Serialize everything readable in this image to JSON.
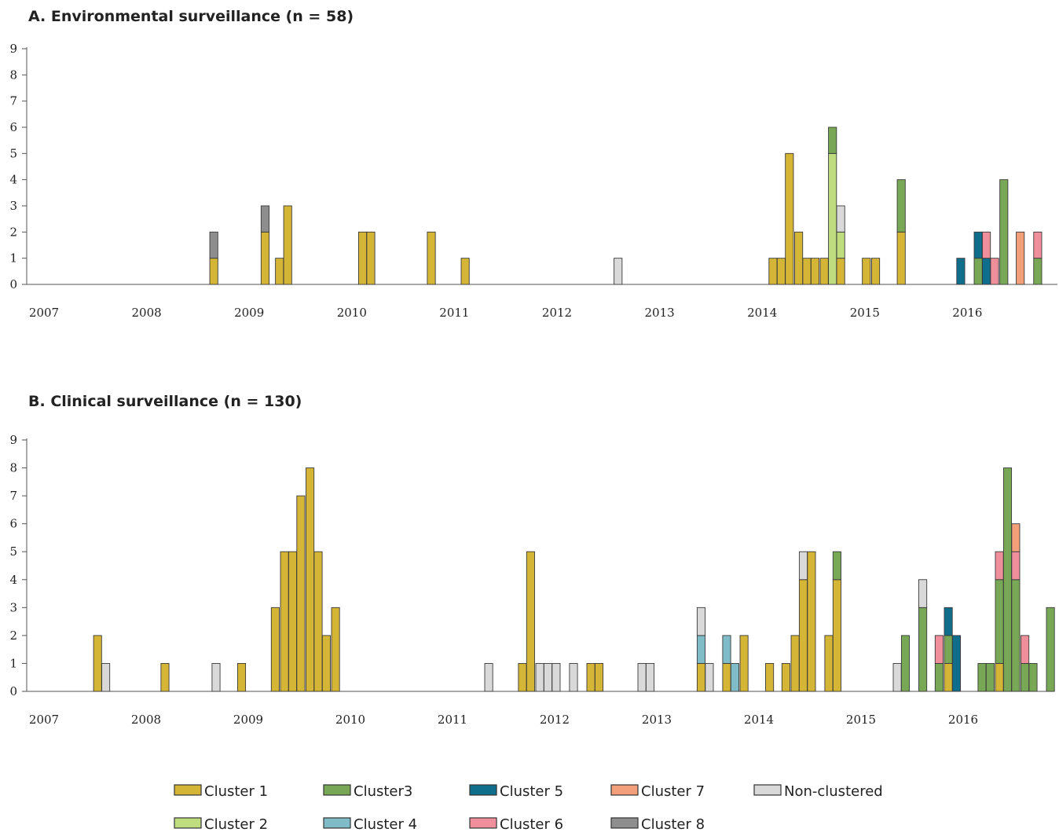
{
  "colors": {
    "Cluster 1": "#d4b536",
    "Cluster 2": "#bfdc7f",
    "Cluster 3": "#78a855",
    "Cluster 4": "#7fbcc8",
    "Cluster 5": "#0f6e8c",
    "Cluster 6": "#ef8f9c",
    "Cluster 7": "#f3a07a",
    "Cluster 8": "#8e8e8e",
    "Non-clustered": "#d9d9d9"
  },
  "legend": [
    {
      "key": "Cluster 1",
      "label": "Cluster 1"
    },
    {
      "key": "Cluster 3",
      "label": "Cluster3"
    },
    {
      "key": "Cluster 5",
      "label": "Cluster 5"
    },
    {
      "key": "Cluster 7",
      "label": "Cluster 7"
    },
    {
      "key": "Non-clustered",
      "label": "Non-clustered"
    },
    {
      "key": "Cluster 2",
      "label": "Cluster 2"
    },
    {
      "key": "Cluster 4",
      "label": "Cluster 4"
    },
    {
      "key": "Cluster 6",
      "label": "Cluster 6"
    },
    {
      "key": "Cluster 8",
      "label": "Cluster 8"
    }
  ],
  "chart_data": [
    {
      "type": "bar",
      "stacked": true,
      "title": "A. Environmental surveillance (n = 58)",
      "xlabel": "",
      "ylabel": "",
      "ylim": [
        0,
        9
      ],
      "yticks": [
        0,
        1,
        2,
        3,
        4,
        5,
        6,
        7,
        8,
        9
      ],
      "xticks": [
        "2007",
        "2008",
        "2009",
        "2010",
        "2011",
        "2012",
        "2013",
        "2014",
        "2015",
        "2016"
      ],
      "xlim": [
        2007.0,
        2017.0
      ],
      "bar_width_years": 0.083,
      "bars": [
        {
          "x": 2008.78,
          "stack": [
            {
              "c": "Cluster 1",
              "v": 1
            },
            {
              "c": "Cluster 8",
              "v": 1
            }
          ]
        },
        {
          "x": 2009.28,
          "stack": [
            {
              "c": "Cluster 1",
              "v": 2
            },
            {
              "c": "Cluster 8",
              "v": 1
            }
          ]
        },
        {
          "x": 2009.42,
          "stack": [
            {
              "c": "Cluster 1",
              "v": 1
            }
          ]
        },
        {
          "x": 2009.5,
          "stack": [
            {
              "c": "Cluster 1",
              "v": 3
            }
          ]
        },
        {
          "x": 2010.23,
          "stack": [
            {
              "c": "Cluster 1",
              "v": 2
            }
          ]
        },
        {
          "x": 2010.31,
          "stack": [
            {
              "c": "Cluster 1",
              "v": 2
            }
          ]
        },
        {
          "x": 2010.9,
          "stack": [
            {
              "c": "Cluster 1",
              "v": 2
            }
          ]
        },
        {
          "x": 2011.23,
          "stack": [
            {
              "c": "Cluster 1",
              "v": 1
            }
          ]
        },
        {
          "x": 2012.72,
          "stack": [
            {
              "c": "Non-clustered",
              "v": 1
            }
          ]
        },
        {
          "x": 2014.23,
          "stack": [
            {
              "c": "Cluster 1",
              "v": 1
            }
          ]
        },
        {
          "x": 2014.31,
          "stack": [
            {
              "c": "Cluster 1",
              "v": 1
            }
          ]
        },
        {
          "x": 2014.39,
          "stack": [
            {
              "c": "Cluster 1",
              "v": 5
            }
          ]
        },
        {
          "x": 2014.48,
          "stack": [
            {
              "c": "Cluster 1",
              "v": 2
            }
          ]
        },
        {
          "x": 2014.56,
          "stack": [
            {
              "c": "Cluster 1",
              "v": 1
            }
          ]
        },
        {
          "x": 2014.64,
          "stack": [
            {
              "c": "Cluster 1",
              "v": 1
            }
          ]
        },
        {
          "x": 2014.73,
          "stack": [
            {
              "c": "Cluster 1",
              "v": 1
            }
          ]
        },
        {
          "x": 2014.81,
          "stack": [
            {
              "c": "Cluster 2",
              "v": 5
            },
            {
              "c": "Cluster 3",
              "v": 1
            }
          ]
        },
        {
          "x": 2014.89,
          "stack": [
            {
              "c": "Cluster 1",
              "v": 1
            },
            {
              "c": "Cluster 2",
              "v": 1
            },
            {
              "c": "Non-clustered",
              "v": 1
            }
          ]
        },
        {
          "x": 2015.14,
          "stack": [
            {
              "c": "Cluster 1",
              "v": 1
            }
          ]
        },
        {
          "x": 2015.23,
          "stack": [
            {
              "c": "Cluster 1",
              "v": 1
            }
          ]
        },
        {
          "x": 2015.48,
          "stack": [
            {
              "c": "Cluster 1",
              "v": 2
            },
            {
              "c": "Cluster 3",
              "v": 2
            }
          ]
        },
        {
          "x": 2016.06,
          "stack": [
            {
              "c": "Cluster 5",
              "v": 1
            }
          ]
        },
        {
          "x": 2016.23,
          "stack": [
            {
              "c": "Cluster 3",
              "v": 1
            },
            {
              "c": "Cluster 5",
              "v": 1
            }
          ]
        },
        {
          "x": 2016.31,
          "stack": [
            {
              "c": "Cluster 5",
              "v": 1
            },
            {
              "c": "Cluster 6",
              "v": 1
            }
          ]
        },
        {
          "x": 2016.39,
          "stack": [
            {
              "c": "Cluster 6",
              "v": 1
            }
          ]
        },
        {
          "x": 2016.48,
          "stack": [
            {
              "c": "Cluster 3",
              "v": 4
            }
          ]
        },
        {
          "x": 2016.64,
          "stack": [
            {
              "c": "Cluster 7",
              "v": 2
            }
          ]
        },
        {
          "x": 2016.81,
          "stack": [
            {
              "c": "Cluster 3",
              "v": 1
            },
            {
              "c": "Cluster 6",
              "v": 1
            }
          ]
        }
      ]
    },
    {
      "type": "bar",
      "stacked": true,
      "title": "B. Clinical surveillance (n = 130)",
      "xlabel": "",
      "ylabel": "",
      "ylim": [
        0,
        9
      ],
      "yticks": [
        0,
        1,
        2,
        3,
        4,
        5,
        6,
        7,
        8,
        9
      ],
      "xticks": [
        "2007",
        "2008",
        "2009",
        "2010",
        "2011",
        "2012",
        "2013",
        "2014",
        "2015",
        "2016"
      ],
      "xlim": [
        2007.0,
        2017.0
      ],
      "bar_width_years": 0.083,
      "bars": [
        {
          "x": 2007.65,
          "stack": [
            {
              "c": "Cluster 1",
              "v": 2
            }
          ]
        },
        {
          "x": 2007.73,
          "stack": [
            {
              "c": "Non-clustered",
              "v": 1
            }
          ]
        },
        {
          "x": 2008.31,
          "stack": [
            {
              "c": "Cluster 1",
              "v": 1
            }
          ]
        },
        {
          "x": 2008.81,
          "stack": [
            {
              "c": "Non-clustered",
              "v": 1
            }
          ]
        },
        {
          "x": 2009.06,
          "stack": [
            {
              "c": "Cluster 1",
              "v": 1
            }
          ]
        },
        {
          "x": 2009.39,
          "stack": [
            {
              "c": "Cluster 1",
              "v": 3
            }
          ]
        },
        {
          "x": 2009.48,
          "stack": [
            {
              "c": "Cluster 1",
              "v": 5
            }
          ]
        },
        {
          "x": 2009.56,
          "stack": [
            {
              "c": "Cluster 1",
              "v": 5
            }
          ]
        },
        {
          "x": 2009.64,
          "stack": [
            {
              "c": "Cluster 1",
              "v": 7
            }
          ]
        },
        {
          "x": 2009.73,
          "stack": [
            {
              "c": "Cluster 1",
              "v": 8
            }
          ]
        },
        {
          "x": 2009.81,
          "stack": [
            {
              "c": "Cluster 1",
              "v": 5
            }
          ]
        },
        {
          "x": 2009.89,
          "stack": [
            {
              "c": "Cluster 1",
              "v": 2
            }
          ]
        },
        {
          "x": 2009.98,
          "stack": [
            {
              "c": "Cluster 1",
              "v": 3
            }
          ]
        },
        {
          "x": 2011.48,
          "stack": [
            {
              "c": "Non-clustered",
              "v": 1
            }
          ]
        },
        {
          "x": 2011.81,
          "stack": [
            {
              "c": "Cluster 1",
              "v": 1
            }
          ]
        },
        {
          "x": 2011.89,
          "stack": [
            {
              "c": "Cluster 1",
              "v": 5
            }
          ]
        },
        {
          "x": 2011.98,
          "stack": [
            {
              "c": "Non-clustered",
              "v": 1
            }
          ]
        },
        {
          "x": 2012.06,
          "stack": [
            {
              "c": "Non-clustered",
              "v": 1
            }
          ]
        },
        {
          "x": 2012.14,
          "stack": [
            {
              "c": "Non-clustered",
              "v": 1
            }
          ]
        },
        {
          "x": 2012.31,
          "stack": [
            {
              "c": "Non-clustered",
              "v": 1
            }
          ]
        },
        {
          "x": 2012.48,
          "stack": [
            {
              "c": "Cluster 1",
              "v": 1
            }
          ]
        },
        {
          "x": 2012.56,
          "stack": [
            {
              "c": "Cluster 1",
              "v": 1
            }
          ]
        },
        {
          "x": 2012.98,
          "stack": [
            {
              "c": "Non-clustered",
              "v": 1
            }
          ]
        },
        {
          "x": 2013.06,
          "stack": [
            {
              "c": "Non-clustered",
              "v": 1
            }
          ]
        },
        {
          "x": 2013.56,
          "stack": [
            {
              "c": "Cluster 1",
              "v": 1
            },
            {
              "c": "Cluster 4",
              "v": 1
            },
            {
              "c": "Non-clustered",
              "v": 1
            }
          ]
        },
        {
          "x": 2013.64,
          "stack": [
            {
              "c": "Non-clustered",
              "v": 1
            }
          ]
        },
        {
          "x": 2013.81,
          "stack": [
            {
              "c": "Cluster 1",
              "v": 1
            },
            {
              "c": "Cluster 4",
              "v": 1
            }
          ]
        },
        {
          "x": 2013.89,
          "stack": [
            {
              "c": "Cluster 4",
              "v": 1
            }
          ]
        },
        {
          "x": 2013.98,
          "stack": [
            {
              "c": "Cluster 1",
              "v": 2
            }
          ]
        },
        {
          "x": 2014.23,
          "stack": [
            {
              "c": "Cluster 1",
              "v": 1
            }
          ]
        },
        {
          "x": 2014.39,
          "stack": [
            {
              "c": "Cluster 1",
              "v": 1
            }
          ]
        },
        {
          "x": 2014.48,
          "stack": [
            {
              "c": "Cluster 1",
              "v": 2
            }
          ]
        },
        {
          "x": 2014.56,
          "stack": [
            {
              "c": "Cluster 1",
              "v": 4
            },
            {
              "c": "Non-clustered",
              "v": 1
            }
          ]
        },
        {
          "x": 2014.64,
          "stack": [
            {
              "c": "Cluster 1",
              "v": 5
            }
          ]
        },
        {
          "x": 2014.81,
          "stack": [
            {
              "c": "Cluster 1",
              "v": 2
            }
          ]
        },
        {
          "x": 2014.89,
          "stack": [
            {
              "c": "Cluster 1",
              "v": 4
            },
            {
              "c": "Cluster 3",
              "v": 1
            }
          ]
        },
        {
          "x": 2015.48,
          "stack": [
            {
              "c": "Non-clustered",
              "v": 1
            }
          ]
        },
        {
          "x": 2015.56,
          "stack": [
            {
              "c": "Cluster 3",
              "v": 2
            }
          ]
        },
        {
          "x": 2015.73,
          "stack": [
            {
              "c": "Cluster 3",
              "v": 3
            },
            {
              "c": "Non-clustered",
              "v": 1
            }
          ]
        },
        {
          "x": 2015.89,
          "stack": [
            {
              "c": "Cluster 3",
              "v": 1
            },
            {
              "c": "Cluster 6",
              "v": 1
            }
          ]
        },
        {
          "x": 2015.98,
          "stack": [
            {
              "c": "Cluster 1",
              "v": 1
            },
            {
              "c": "Cluster 3",
              "v": 1
            },
            {
              "c": "Cluster 5",
              "v": 1
            }
          ]
        },
        {
          "x": 2016.06,
          "stack": [
            {
              "c": "Cluster 5",
              "v": 2
            }
          ]
        },
        {
          "x": 2016.31,
          "stack": [
            {
              "c": "Cluster 3",
              "v": 1
            }
          ]
        },
        {
          "x": 2016.39,
          "stack": [
            {
              "c": "Cluster 3",
              "v": 1
            }
          ]
        },
        {
          "x": 2016.48,
          "stack": [
            {
              "c": "Cluster 1",
              "v": 1
            },
            {
              "c": "Cluster 3",
              "v": 3
            },
            {
              "c": "Cluster 6",
              "v": 1
            }
          ]
        },
        {
          "x": 2016.56,
          "stack": [
            {
              "c": "Cluster 3",
              "v": 8
            }
          ]
        },
        {
          "x": 2016.64,
          "stack": [
            {
              "c": "Cluster 3",
              "v": 4
            },
            {
              "c": "Cluster 6",
              "v": 1
            },
            {
              "c": "Cluster 7",
              "v": 1
            }
          ]
        },
        {
          "x": 2016.73,
          "stack": [
            {
              "c": "Cluster 3",
              "v": 1
            },
            {
              "c": "Cluster 6",
              "v": 1
            }
          ]
        },
        {
          "x": 2016.81,
          "stack": [
            {
              "c": "Cluster 3",
              "v": 1
            }
          ]
        },
        {
          "x": 2016.98,
          "stack": [
            {
              "c": "Cluster 3",
              "v": 3
            }
          ]
        }
      ]
    }
  ]
}
